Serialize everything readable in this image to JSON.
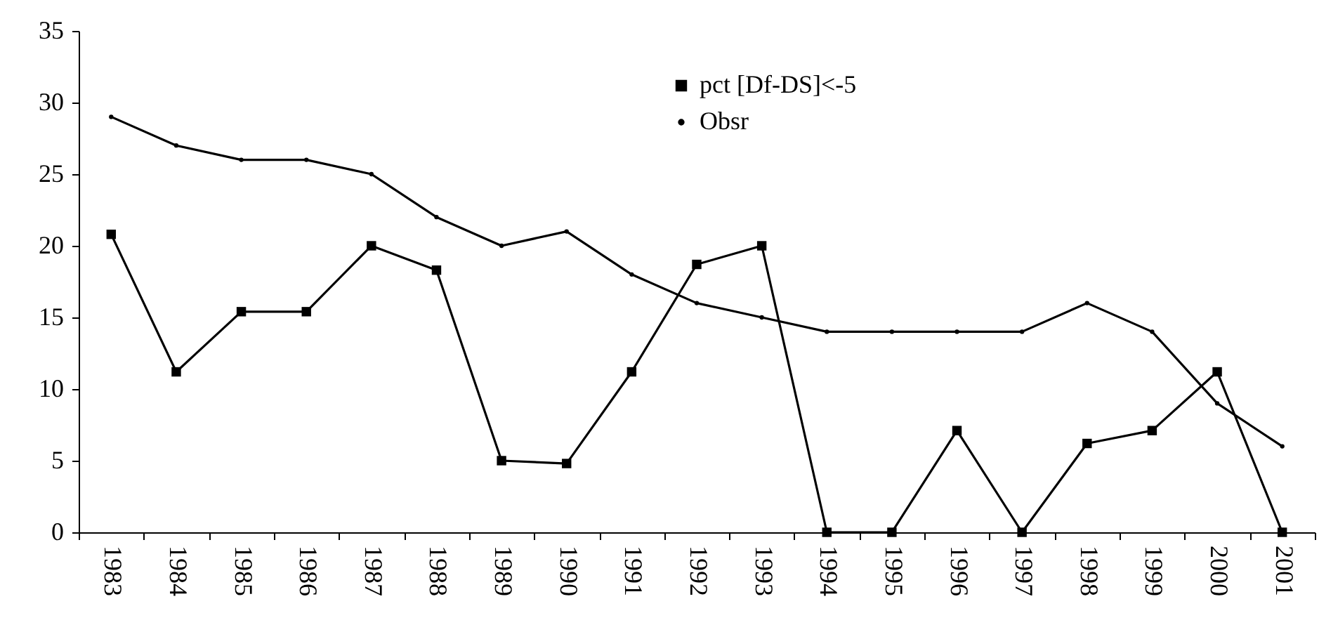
{
  "chart_data": {
    "type": "line",
    "categories": [
      "1983",
      "1984",
      "1985",
      "1986",
      "1987",
      "1988",
      "1989",
      "1990",
      "1991",
      "1992",
      "1993",
      "1994",
      "1995",
      "1996",
      "1997",
      "1998",
      "1999",
      "2000",
      "2001"
    ],
    "series": [
      {
        "name": "pct [Df-DS]<-5",
        "color": "#000000",
        "marker": "square",
        "values": [
          20.8,
          11.2,
          15.4,
          15.4,
          20,
          18.3,
          5,
          4.8,
          11.2,
          18.7,
          20,
          0,
          0,
          7.1,
          0,
          6.2,
          7.1,
          11.2,
          0
        ]
      },
      {
        "name": "Obsr",
        "color": "#000000",
        "marker": "circle",
        "values": [
          29,
          27,
          26,
          26,
          25,
          22,
          20,
          21,
          18,
          16,
          15,
          14,
          14,
          14,
          14,
          16,
          14,
          9,
          6
        ]
      }
    ],
    "ylim": [
      0,
      35
    ],
    "yticks": [
      0,
      5,
      10,
      15,
      20,
      25,
      30,
      35
    ],
    "grid": false,
    "legend": "top right",
    "line_style": "solid"
  }
}
